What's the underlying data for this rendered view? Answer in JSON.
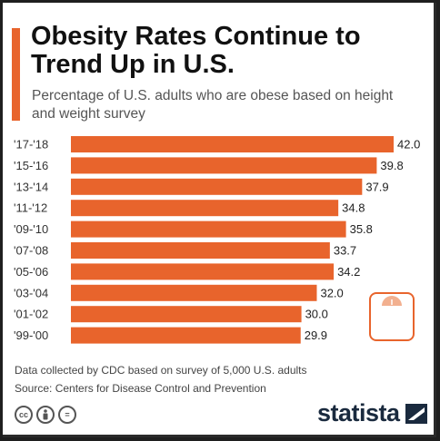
{
  "header": {
    "title": "Obesity Rates Continue to Trend Up in U.S.",
    "subtitle": "Percentage of U.S. adults who are obese based on height and weight survey"
  },
  "chart_data": {
    "type": "bar",
    "orientation": "horizontal",
    "categories": [
      "'17-'18",
      "'15-'16",
      "'13-'14",
      "'11-'12",
      "'09-'10",
      "'07-'08",
      "'05-'06",
      "'03-'04",
      "'01-'02",
      "'99-'00"
    ],
    "values": [
      42.0,
      39.8,
      37.9,
      34.8,
      35.8,
      33.7,
      34.2,
      32.0,
      30.0,
      29.9
    ],
    "value_labels": [
      "42.0",
      "39.8",
      "37.9",
      "34.8",
      "35.8",
      "33.7",
      "34.2",
      "32.0",
      "30.0",
      "29.9"
    ],
    "xlim": [
      0,
      42
    ],
    "grid": false,
    "legend": "none",
    "bar_color": "#e8642c"
  },
  "footer": {
    "note": "Data collected by CDC based on survey of 5,000 U.S. adults",
    "source": "Source: Centers for Disease Control and Prevention",
    "brand": "statista",
    "license_icons": [
      "cc",
      "by",
      "="
    ]
  },
  "colors": {
    "accent": "#e8642c",
    "title": "#111111",
    "text": "#555555",
    "brand": "#1a2a3e"
  },
  "icons": [
    "creative-commons-icon",
    "attribution-icon",
    "no-derivatives-icon",
    "statista-logo-icon",
    "scale-icon"
  ]
}
